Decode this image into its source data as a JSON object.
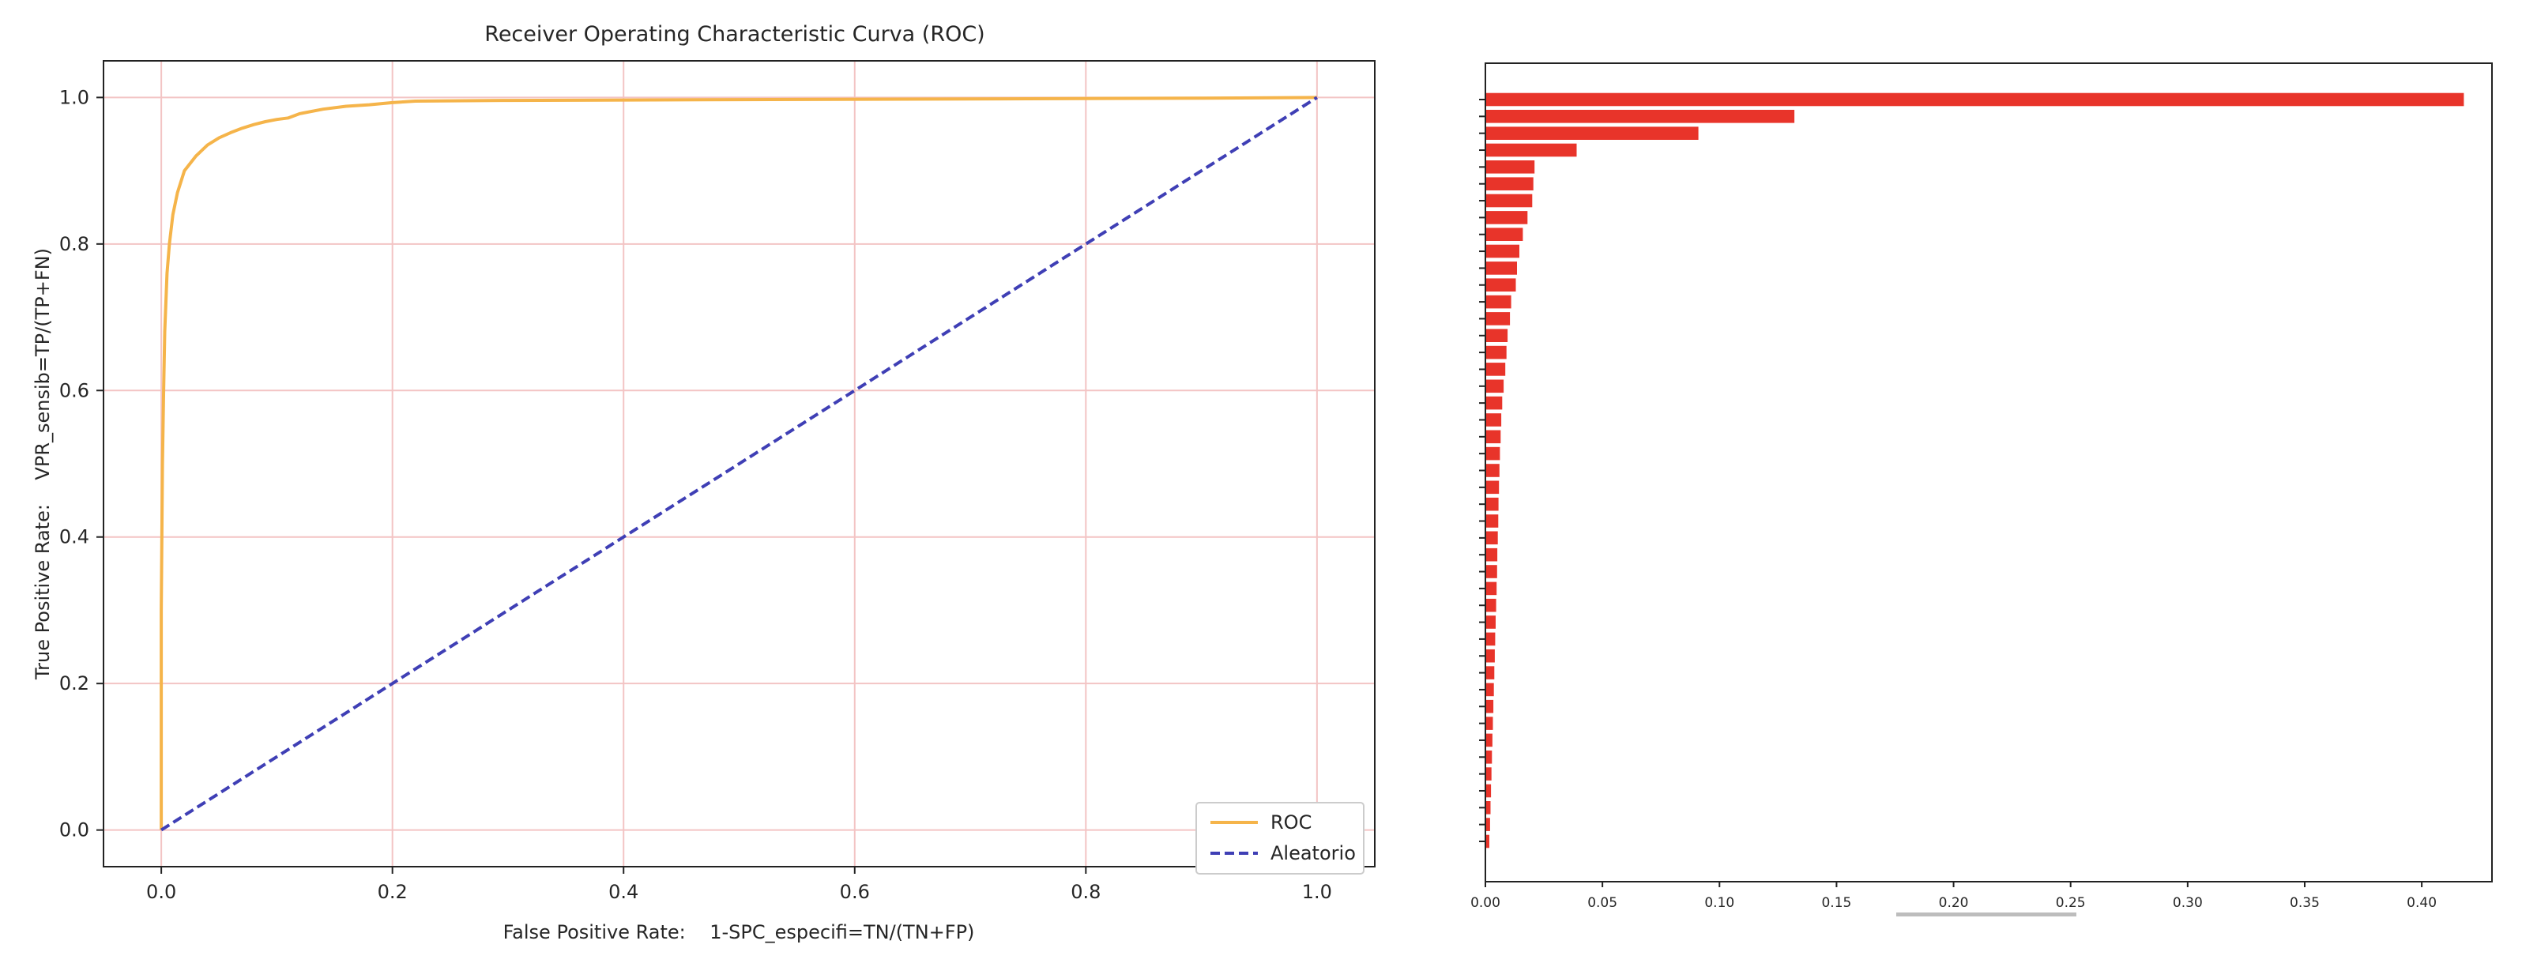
{
  "chart_data": [
    {
      "type": "line",
      "title": "Receiver Operating Characteristic Curva (ROC)",
      "xlabel": "False Positive Rate:    1-SPC_especifi=TN/(TN+FP)",
      "ylabel": "True Positive Rate:    VPR_sensib=TP/(TP+FN)",
      "xlim": [
        -0.05,
        1.05
      ],
      "ylim": [
        -0.05,
        1.05
      ],
      "xticks": [
        "0.0",
        "0.2",
        "0.4",
        "0.6",
        "0.8",
        "1.0"
      ],
      "yticks": [
        "0.0",
        "0.2",
        "0.4",
        "0.6",
        "0.8",
        "1.0"
      ],
      "grid": true,
      "legend_position": "lower-right",
      "series": [
        {
          "name": "ROC",
          "color": "#f5b44a",
          "style": "solid",
          "x": [
            0.0,
            0.0,
            0.001,
            0.002,
            0.003,
            0.005,
            0.007,
            0.01,
            0.014,
            0.02,
            0.03,
            0.04,
            0.05,
            0.06,
            0.07,
            0.08,
            0.09,
            0.1,
            0.11,
            0.12,
            0.14,
            0.16,
            0.18,
            0.2,
            0.22,
            0.3,
            0.5,
            0.7,
            0.9,
            1.0
          ],
          "y": [
            0.0,
            0.3,
            0.5,
            0.6,
            0.68,
            0.76,
            0.8,
            0.84,
            0.87,
            0.9,
            0.92,
            0.935,
            0.945,
            0.952,
            0.958,
            0.963,
            0.967,
            0.97,
            0.972,
            0.978,
            0.984,
            0.988,
            0.99,
            0.993,
            0.995,
            0.996,
            0.997,
            0.998,
            0.999,
            1.0
          ]
        },
        {
          "name": "Aleatorio",
          "color": "#3f3fb5",
          "style": "dashed",
          "x": [
            0.0,
            1.0
          ],
          "y": [
            0.0,
            1.0
          ]
        }
      ]
    },
    {
      "type": "bar",
      "orientation": "horizontal",
      "color": "#e8342a",
      "xlim": [
        0.0,
        0.43
      ],
      "xticks": [
        "0.00",
        "0.05",
        "0.10",
        "0.15",
        "0.20",
        "0.25",
        "0.30",
        "0.35",
        "0.40"
      ],
      "values": [
        0.418,
        0.132,
        0.091,
        0.039,
        0.021,
        0.0205,
        0.02,
        0.018,
        0.016,
        0.0145,
        0.0135,
        0.013,
        0.011,
        0.0105,
        0.0095,
        0.009,
        0.0085,
        0.0078,
        0.0072,
        0.0068,
        0.0065,
        0.0062,
        0.006,
        0.0058,
        0.0056,
        0.0055,
        0.0053,
        0.0051,
        0.005,
        0.0048,
        0.0046,
        0.0044,
        0.0042,
        0.004,
        0.0038,
        0.0036,
        0.0034,
        0.0032,
        0.003,
        0.0028,
        0.0026,
        0.0024,
        0.0022,
        0.002,
        0.0017
      ],
      "note_labels_hidden": true
    }
  ]
}
